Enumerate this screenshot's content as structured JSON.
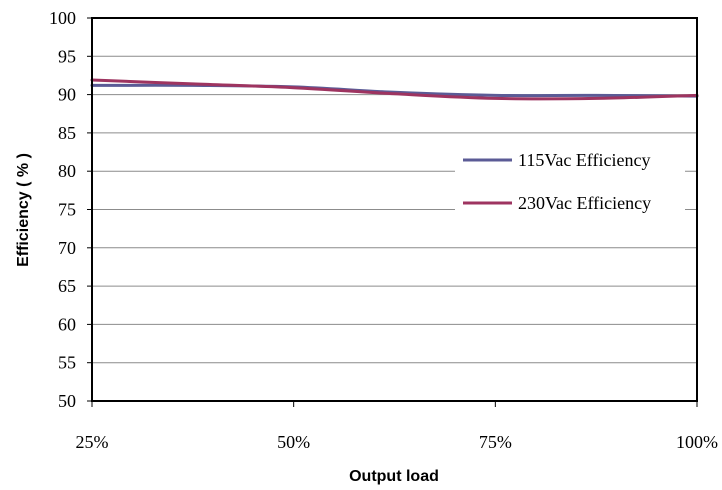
{
  "chart_data": {
    "type": "line",
    "title": "",
    "xlabel": "Output load",
    "ylabel": "Efficiency ( % )",
    "categories": [
      "25%",
      "50%",
      "75%",
      "100%"
    ],
    "ylim": [
      50,
      100
    ],
    "yticks": [
      50,
      55,
      60,
      65,
      70,
      75,
      80,
      85,
      90,
      95,
      100
    ],
    "grid": "horizontal",
    "legend_position": "right",
    "series": [
      {
        "name": "115Vac Efficiency",
        "color": "#5B5B96",
        "x": [
          25,
          37.5,
          50,
          62.5,
          75,
          87.5,
          100
        ],
        "values": [
          91.2,
          91.2,
          91.0,
          90.3,
          89.9,
          89.9,
          89.8
        ]
      },
      {
        "name": "230Vac Efficiency",
        "color": "#9E3460",
        "x": [
          25,
          37.5,
          50,
          62.5,
          75,
          87.5,
          100
        ],
        "values": [
          91.9,
          91.4,
          90.9,
          90.1,
          89.5,
          89.5,
          89.9
        ]
      }
    ]
  }
}
